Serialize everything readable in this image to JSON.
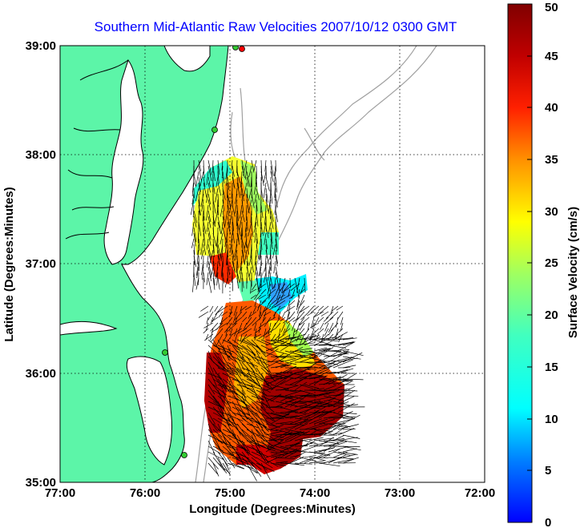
{
  "title": "Southern Mid-Atlantic Raw Velocities 2007/10/12 0300 GMT",
  "map": {
    "x_axis": {
      "label": "Longitude (Degrees:Minutes)",
      "ticks": [
        "77:00",
        "76:00",
        "75:00",
        "74:00",
        "73:00",
        "72:00"
      ],
      "range": [
        -77,
        -72
      ]
    },
    "y_axis": {
      "label": "Latitude (Degrees:Minutes)",
      "ticks": [
        "35:00",
        "36:00",
        "37:00",
        "38:00",
        "39:00"
      ],
      "range": [
        35,
        39
      ]
    },
    "grid": "dotted",
    "colors": {
      "land": "#5cf5a8",
      "coastline": "#000000",
      "bathymetry": "#a0a0a0",
      "stations": "#33cc33"
    }
  },
  "colorbar": {
    "label": "Surface Velocity (cm/s)",
    "ticks": [
      "0",
      "5",
      "10",
      "15",
      "20",
      "25",
      "30",
      "35",
      "40",
      "45",
      "50"
    ],
    "range": [
      0,
      50
    ],
    "colormap": "jet"
  }
}
